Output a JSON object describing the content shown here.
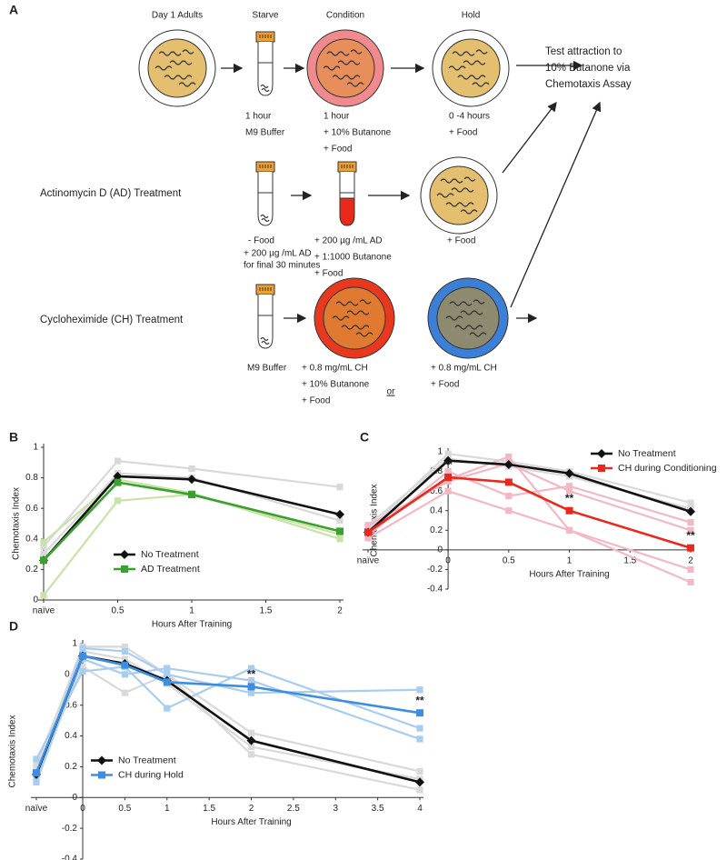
{
  "panel_a": {
    "label": "A",
    "headers": [
      "Day 1 Adults",
      "Starve",
      "Condition",
      "Hold"
    ],
    "test_text": [
      "Test attraction to",
      "10% Butanone via",
      "Chemotaxis Assay"
    ],
    "row1_notes": [
      [
        "1 hour",
        "M9 Buffer"
      ],
      [
        "1 hour",
        "+ 10% Butanone",
        "+ Food"
      ],
      [
        "0 -4 hours",
        "+ Food"
      ]
    ],
    "ad_label": "Actinomycin D  (AD) Treatment",
    "ad_notes": [
      [
        "- Food",
        "+ 200 µg /mL AD",
        "for final 30 minutes"
      ],
      [
        "+ 200 µg /mL AD",
        "+ 1:1000 Butanone",
        "+ Food"
      ],
      [
        "+ Food"
      ]
    ],
    "ch_label": "Cycloheximide (CH) Treatment",
    "ch_notes": [
      [
        "M9 Buffer"
      ],
      [
        "+ 0.8 mg/mL CH",
        "+ 10% Butanone",
        "+ Food"
      ],
      [
        "+ 0.8 mg/mL CH",
        "+ Food"
      ]
    ],
    "or": "or"
  },
  "chart_data": [
    {
      "type": "line",
      "panel": "B",
      "x_label": "Hours After Training",
      "y_label": "Chemotaxis Index",
      "x": [
        0,
        0.5,
        1,
        2
      ],
      "xlim": [
        0,
        2
      ],
      "xticks": [
        {
          "value": 0,
          "label": "naïve"
        },
        0.5,
        1,
        1.5,
        2
      ],
      "ylim": [
        0,
        1
      ],
      "yticks": [
        0,
        0.2,
        0.4,
        0.6,
        0.8,
        1
      ],
      "legend": "lower center",
      "series": [
        {
          "color": "#d9d9d9",
          "marker": "square",
          "values": [
            0.35,
            0.91,
            0.86,
            0.74
          ]
        },
        {
          "color": "#d9d9d9",
          "marker": "square",
          "values": [
            0.3,
            0.83,
            0.8,
            0.52
          ]
        },
        {
          "color": "#c8e3a8",
          "marker": "square",
          "values": [
            0.38,
            0.79,
            0.7,
            0.4
          ]
        },
        {
          "color": "#c8e3a8",
          "marker": "square",
          "values": [
            0.03,
            0.65,
            0.69,
            0.43
          ]
        },
        {
          "name": "No Treatment",
          "color": "#111111",
          "marker": "diamond",
          "values": [
            0.26,
            0.81,
            0.79,
            0.56
          ]
        },
        {
          "name": "AD Treatment",
          "color": "#3aa02e",
          "marker": "square",
          "values": [
            0.26,
            0.77,
            0.69,
            0.45
          ]
        }
      ]
    },
    {
      "type": "line",
      "panel": "C",
      "x_label": "Hours After Training",
      "y_label": "Chemotaxis Index",
      "x": [
        -0.66,
        0,
        0.5,
        1,
        2
      ],
      "xlim": [
        -0.66,
        2
      ],
      "xticks": [
        {
          "value": -0.66,
          "label": "naïve"
        },
        0,
        0.5,
        1,
        1.5,
        2
      ],
      "ylim": [
        -0.4,
        1
      ],
      "yticks": [
        -0.4,
        -0.2,
        0,
        0.2,
        0.4,
        0.6,
        0.8,
        1
      ],
      "legend": "upper right",
      "annotations": [
        "**",
        "**",
        "**"
      ],
      "series": [
        {
          "color": "#d9d9d9",
          "marker": "square",
          "values": [
            0.2,
            0.98,
            0.9,
            0.8,
            0.48
          ]
        },
        {
          "color": "#d9d9d9",
          "marker": "square",
          "values": [
            0.25,
            0.93,
            0.85,
            0.75,
            0.42
          ]
        },
        {
          "color": "#f2b8c4",
          "marker": "square",
          "values": [
            0.12,
            0.6,
            0.4,
            0.2,
            -0.33
          ]
        },
        {
          "color": "#f2b8c4",
          "marker": "square",
          "values": [
            0.2,
            0.72,
            0.95,
            0.2,
            -0.2
          ]
        },
        {
          "color": "#f2b8c4",
          "marker": "square",
          "values": [
            0.15,
            0.8,
            0.55,
            0.65,
            0.28
          ]
        },
        {
          "color": "#f2b8c4",
          "marker": "square",
          "values": [
            0.25,
            0.7,
            0.88,
            0.6,
            0.2
          ]
        },
        {
          "name": "No Treatment",
          "color": "#111111",
          "marker": "diamond",
          "values": [
            0.18,
            0.91,
            0.87,
            0.78,
            0.39
          ]
        },
        {
          "name": "CH during Conditioning",
          "color": "#e8291b",
          "marker": "square",
          "values": [
            0.18,
            0.74,
            0.69,
            0.4,
            0.02
          ]
        }
      ]
    },
    {
      "type": "line",
      "panel": "D",
      "x_label": "Hours After Training",
      "y_label": "Chemotaxis Index",
      "x": [
        -0.55,
        0,
        0.5,
        1,
        2,
        4
      ],
      "xlim": [
        -0.55,
        4
      ],
      "xticks": [
        {
          "value": -0.55,
          "label": "naïve"
        },
        0,
        0.5,
        1,
        1.5,
        2,
        2.5,
        3,
        3.5,
        4
      ],
      "ylim": [
        -0.4,
        1
      ],
      "yticks": [
        -0.4,
        -0.2,
        0,
        0.2,
        0.4,
        0.6,
        0.8,
        1
      ],
      "legend": "center left",
      "annotations": [
        "**",
        "**"
      ],
      "series": [
        {
          "color": "#d9d9d9",
          "marker": "square",
          "values": [
            0.2,
            0.98,
            0.98,
            0.8,
            0.28,
            0.05
          ]
        },
        {
          "color": "#d9d9d9",
          "marker": "square",
          "values": [
            0.15,
            0.85,
            0.68,
            0.8,
            0.42,
            0.17
          ]
        },
        {
          "color": "#d9d9d9",
          "marker": "square",
          "values": [
            0.22,
            0.95,
            0.9,
            0.74,
            0.33,
            0.12
          ]
        },
        {
          "color": "#a9cdef",
          "marker": "square",
          "values": [
            0.25,
            0.82,
            0.85,
            0.58,
            0.84,
            0.45
          ]
        },
        {
          "color": "#a9cdef",
          "marker": "square",
          "values": [
            0.12,
            0.97,
            0.95,
            0.8,
            0.68,
            0.7
          ]
        },
        {
          "color": "#a9cdef",
          "marker": "square",
          "values": [
            0.1,
            0.9,
            0.8,
            0.84,
            0.76,
            0.38
          ]
        },
        {
          "name": "No Treatment",
          "color": "#111111",
          "marker": "diamond",
          "values": [
            0.15,
            0.92,
            0.87,
            0.76,
            0.37,
            0.1
          ]
        },
        {
          "name": "CH during Hold",
          "color": "#3d8ee0",
          "marker": "square",
          "values": [
            0.16,
            0.92,
            0.86,
            0.75,
            0.72,
            0.55
          ]
        }
      ]
    }
  ]
}
